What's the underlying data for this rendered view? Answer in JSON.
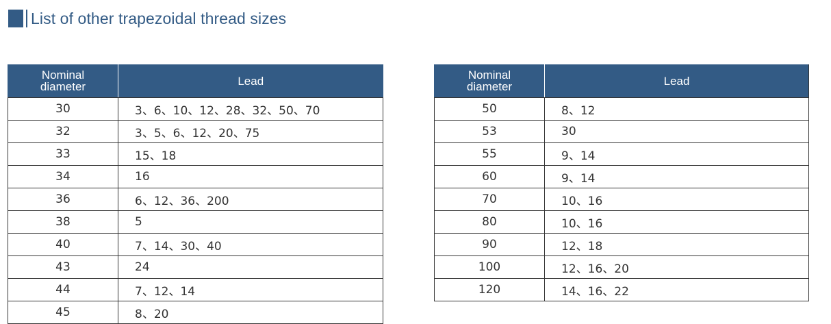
{
  "section": {
    "title": "List of other trapezoidal thread sizes"
  },
  "headers": {
    "nominal_line1": "Nominal",
    "nominal_line2": "diameter",
    "lead": "Lead"
  },
  "left_table": {
    "rows": [
      {
        "diameter": "30",
        "lead": "3、6、10、12、28、32、50、70"
      },
      {
        "diameter": "32",
        "lead": "3、5、6、12、20、75"
      },
      {
        "diameter": "33",
        "lead": "15、18"
      },
      {
        "diameter": "34",
        "lead": "16"
      },
      {
        "diameter": "36",
        "lead": "6、12、36、200"
      },
      {
        "diameter": "38",
        "lead": "5"
      },
      {
        "diameter": "40",
        "lead": "7、14、30、40"
      },
      {
        "diameter": "43",
        "lead": "24"
      },
      {
        "diameter": "44",
        "lead": "7、12、14"
      },
      {
        "diameter": "45",
        "lead": "8、20"
      }
    ]
  },
  "right_table": {
    "rows": [
      {
        "diameter": "50",
        "lead": "8、12"
      },
      {
        "diameter": "53",
        "lead": "30"
      },
      {
        "diameter": "55",
        "lead": "9、14"
      },
      {
        "diameter": "60",
        "lead": "9、14"
      },
      {
        "diameter": "70",
        "lead": "10、16"
      },
      {
        "diameter": "80",
        "lead": "10、16"
      },
      {
        "diameter": "90",
        "lead": "12、18"
      },
      {
        "diameter": "100",
        "lead": "12、16、20"
      },
      {
        "diameter": "120",
        "lead": "14、16、22"
      }
    ]
  }
}
